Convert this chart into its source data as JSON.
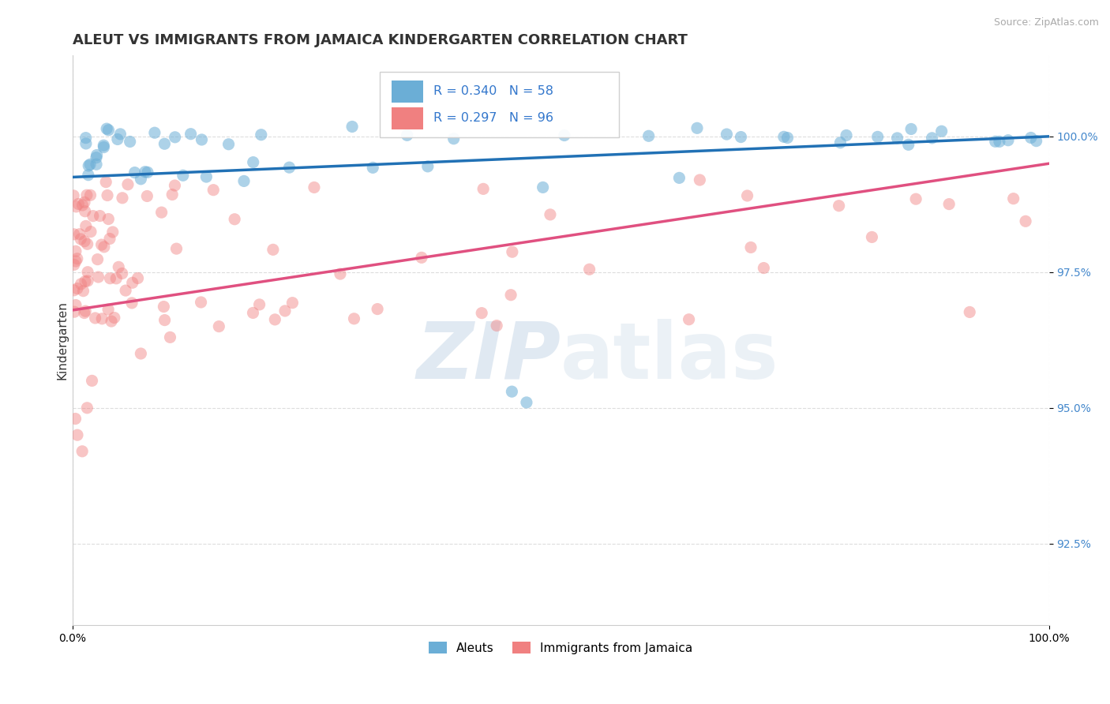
{
  "title": "ALEUT VS IMMIGRANTS FROM JAMAICA KINDERGARTEN CORRELATION CHART",
  "source": "Source: ZipAtlas.com",
  "ylabel": "Kindergarten",
  "xlim": [
    0.0,
    100.0
  ],
  "ylim": [
    91.0,
    101.5
  ],
  "yticks": [
    92.5,
    95.0,
    97.5,
    100.0
  ],
  "yticklabels": [
    "92.5%",
    "95.0%",
    "97.5%",
    "100.0%"
  ],
  "aleut_color": "#6baed6",
  "jamaica_color": "#f08080",
  "aleut_line_color": "#2171b5",
  "jamaica_line_color": "#e05080",
  "bg_color": "#ffffff",
  "grid_color": "#dddddd",
  "title_color": "#333333",
  "title_fontsize": 13,
  "axis_label_fontsize": 11,
  "tick_fontsize": 10,
  "watermark1": "ZIP",
  "watermark2": "atlas",
  "aleut_line_x0": 0,
  "aleut_line_x1": 100,
  "aleut_line_y0": 99.25,
  "aleut_line_y1": 100.0,
  "jam_line_x0": 0,
  "jam_line_x1": 100,
  "jam_line_y0": 96.8,
  "jam_line_y1": 99.5
}
